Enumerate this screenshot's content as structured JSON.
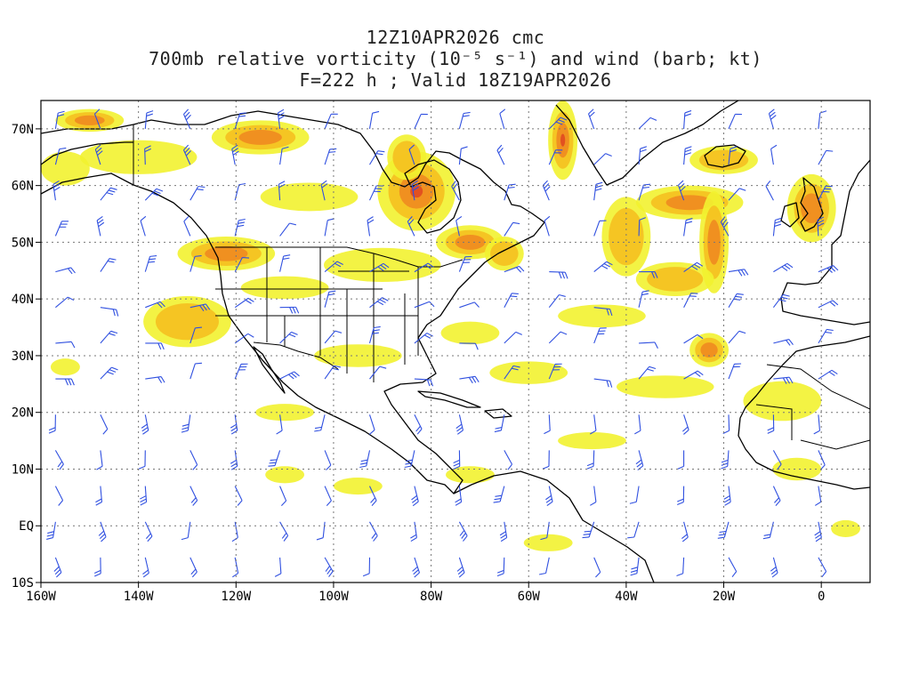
{
  "title": {
    "line1": "12Z10APR2026 cmc",
    "line2": "700mb relative vorticity (10⁻⁵ s⁻¹) and wind (barb; kt)",
    "line3": "F=222 h ; Valid 18Z19APR2026"
  },
  "axes": {
    "lon_range": [
      -160,
      10
    ],
    "lat_range": [
      -10,
      75
    ],
    "lon_ticks": [
      {
        "v": -160,
        "label": "160W"
      },
      {
        "v": -140,
        "label": "140W"
      },
      {
        "v": -120,
        "label": "120W"
      },
      {
        "v": -100,
        "label": "100W"
      },
      {
        "v": -80,
        "label": "80W"
      },
      {
        "v": -60,
        "label": "60W"
      },
      {
        "v": -40,
        "label": "40W"
      },
      {
        "v": -20,
        "label": "20W"
      },
      {
        "v": 0,
        "label": "0"
      }
    ],
    "lat_ticks": [
      {
        "v": 70,
        "label": "70N"
      },
      {
        "v": 60,
        "label": "60N"
      },
      {
        "v": 50,
        "label": "50N"
      },
      {
        "v": 40,
        "label": "40N"
      },
      {
        "v": 30,
        "label": "30N"
      },
      {
        "v": 20,
        "label": "20N"
      },
      {
        "v": 10,
        "label": "10N"
      },
      {
        "v": 0,
        "label": "EQ"
      },
      {
        "v": -10,
        "label": "10S"
      }
    ]
  },
  "colors": {
    "low": "#f2f230",
    "mid": "#f5c020",
    "high": "#f08a20",
    "max": "#e04a20",
    "barb": "#3050e0",
    "coast": "#000000",
    "grid": "#777777"
  },
  "vorticity_blobs": [
    {
      "lon": -150,
      "lat": 71.5,
      "rx": 7,
      "ry": 2,
      "level": 3
    },
    {
      "lon": -115,
      "lat": 68.5,
      "rx": 10,
      "ry": 3,
      "level": 3
    },
    {
      "lon": -83,
      "lat": 59,
      "rx": 8,
      "ry": 7,
      "level": 4
    },
    {
      "lon": -85,
      "lat": 65,
      "rx": 4,
      "ry": 4,
      "level": 2
    },
    {
      "lon": -53,
      "lat": 68,
      "rx": 3,
      "ry": 7,
      "level": 4
    },
    {
      "lon": -27,
      "lat": 57,
      "rx": 11,
      "ry": 3,
      "level": 3
    },
    {
      "lon": -22,
      "lat": 50,
      "rx": 3,
      "ry": 9,
      "level": 3
    },
    {
      "lon": -40,
      "lat": 51,
      "rx": 5,
      "ry": 7,
      "level": 2
    },
    {
      "lon": -30,
      "lat": 43.5,
      "rx": 8,
      "ry": 3,
      "level": 2
    },
    {
      "lon": -20,
      "lat": 64.5,
      "rx": 7,
      "ry": 2.5,
      "level": 2
    },
    {
      "lon": -2,
      "lat": 56,
      "rx": 5,
      "ry": 6,
      "level": 3
    },
    {
      "lon": -122,
      "lat": 48,
      "rx": 10,
      "ry": 3,
      "level": 3
    },
    {
      "lon": -72,
      "lat": 50,
      "rx": 7,
      "ry": 3,
      "level": 3
    },
    {
      "lon": -65,
      "lat": 48,
      "rx": 4,
      "ry": 3,
      "level": 2
    },
    {
      "lon": -130,
      "lat": 36,
      "rx": 9,
      "ry": 4.5,
      "level": 2
    },
    {
      "lon": -23,
      "lat": 31,
      "rx": 4,
      "ry": 3,
      "level": 3
    },
    {
      "lon": -32,
      "lat": 24.5,
      "rx": 10,
      "ry": 2,
      "level": 1
    },
    {
      "lon": -8,
      "lat": 22,
      "rx": 8,
      "ry": 3.5,
      "level": 1
    },
    {
      "lon": -105,
      "lat": 58,
      "rx": 10,
      "ry": 2.5,
      "level": 1
    },
    {
      "lon": -140,
      "lat": 65,
      "rx": 12,
      "ry": 3,
      "level": 1
    },
    {
      "lon": -155,
      "lat": 63,
      "rx": 5,
      "ry": 3,
      "level": 1
    },
    {
      "lon": -90,
      "lat": 46,
      "rx": 12,
      "ry": 3,
      "level": 1
    },
    {
      "lon": -110,
      "lat": 42,
      "rx": 9,
      "ry": 2,
      "level": 1
    },
    {
      "lon": -45,
      "lat": 37,
      "rx": 9,
      "ry": 2,
      "level": 1
    },
    {
      "lon": -95,
      "lat": 30,
      "rx": 9,
      "ry": 2,
      "level": 1
    },
    {
      "lon": -72,
      "lat": 34,
      "rx": 6,
      "ry": 2,
      "level": 1
    },
    {
      "lon": -60,
      "lat": 27,
      "rx": 8,
      "ry": 2,
      "level": 1
    },
    {
      "lon": -110,
      "lat": 20,
      "rx": 6,
      "ry": 1.5,
      "level": 1
    },
    {
      "lon": -47,
      "lat": 15,
      "rx": 7,
      "ry": 1.5,
      "level": 1
    },
    {
      "lon": -95,
      "lat": 7,
      "rx": 5,
      "ry": 1.5,
      "level": 1
    },
    {
      "lon": -72,
      "lat": 9,
      "rx": 5,
      "ry": 1.5,
      "level": 1
    },
    {
      "lon": -110,
      "lat": 9,
      "rx": 4,
      "ry": 1.5,
      "level": 1
    },
    {
      "lon": -56,
      "lat": -3,
      "rx": 5,
      "ry": 1.5,
      "level": 1
    },
    {
      "lon": -155,
      "lat": 28,
      "rx": 3,
      "ry": 1.5,
      "level": 1
    },
    {
      "lon": -5,
      "lat": 10,
      "rx": 5,
      "ry": 2,
      "level": 1
    },
    {
      "lon": 5,
      "lat": -0.5,
      "rx": 3,
      "ry": 1.5,
      "level": 1
    }
  ]
}
